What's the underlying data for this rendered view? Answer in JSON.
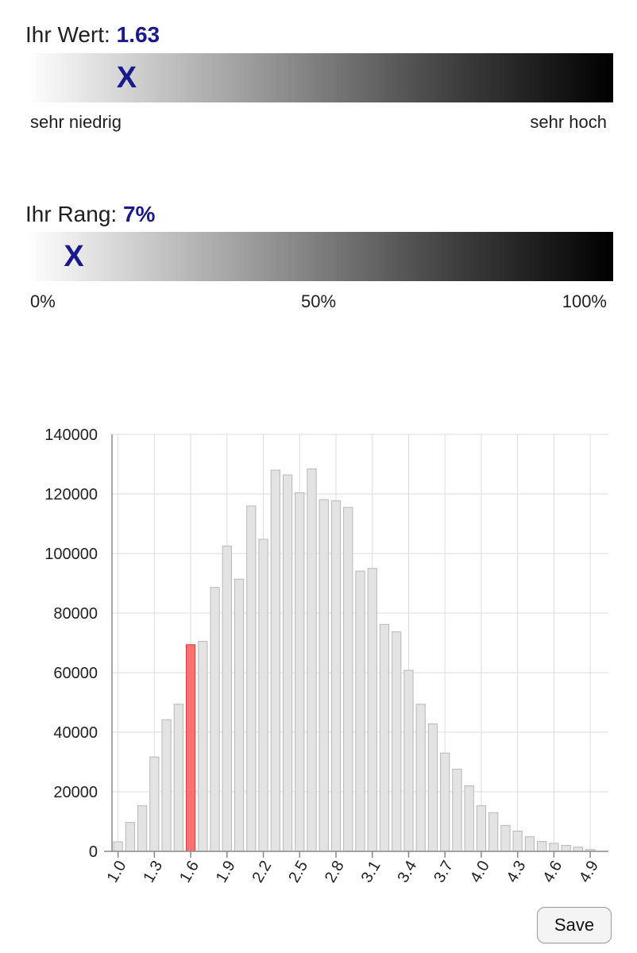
{
  "value_section": {
    "label": "Ihr Wert:",
    "value": "1.63",
    "marker": "X",
    "marker_fraction": 0.17,
    "left_label": "sehr niedrig",
    "right_label": "sehr hoch"
  },
  "rank_section": {
    "label": "Ihr Rang:",
    "value": "7%",
    "marker": "X",
    "marker_fraction": 0.08,
    "tick_labels": [
      "0%",
      "50%",
      "100%"
    ]
  },
  "chart_data": {
    "type": "bar",
    "title": "",
    "xlabel": "",
    "ylabel": "",
    "ylim": [
      0,
      140000
    ],
    "y_ticks": [
      0,
      20000,
      40000,
      60000,
      80000,
      100000,
      120000,
      140000
    ],
    "x_tick_labels": [
      "1.0",
      "1.3",
      "1.6",
      "1.9",
      "2.2",
      "2.5",
      "2.8",
      "3.1",
      "3.4",
      "3.7",
      "4.0",
      "4.3",
      "4.6",
      "4.9"
    ],
    "categories": [
      "1.0",
      "1.1",
      "1.2",
      "1.3",
      "1.4",
      "1.5",
      "1.6",
      "1.7",
      "1.8",
      "1.9",
      "2.0",
      "2.1",
      "2.2",
      "2.3",
      "2.4",
      "2.5",
      "2.6",
      "2.7",
      "2.8",
      "2.9",
      "3.0",
      "3.1",
      "3.2",
      "3.3",
      "3.4",
      "3.5",
      "3.6",
      "3.7",
      "3.8",
      "3.9",
      "4.0",
      "4.1",
      "4.2",
      "4.3",
      "4.4",
      "4.5",
      "4.6",
      "4.7",
      "4.8",
      "4.9",
      "5.0"
    ],
    "values": [
      3200,
      9700,
      15300,
      31700,
      44200,
      49400,
      69400,
      70500,
      88600,
      102500,
      91400,
      116000,
      104800,
      128000,
      126400,
      120400,
      128400,
      118100,
      117700,
      115500,
      94100,
      95000,
      76200,
      73700,
      60800,
      49400,
      42800,
      33000,
      27600,
      22000,
      15300,
      13000,
      8700,
      6800,
      4900,
      3300,
      2700,
      2000,
      1400,
      600,
      0
    ],
    "highlight_category": "1.6",
    "grid": true,
    "colors": {
      "bar": "#e3e3e3",
      "bar_border": "#b8b8b8",
      "highlight": "#ff7070",
      "highlight_border": "#e03a3a",
      "grid": "#dddddd",
      "axis": "#888888"
    }
  },
  "save_button": {
    "label": "Save"
  }
}
